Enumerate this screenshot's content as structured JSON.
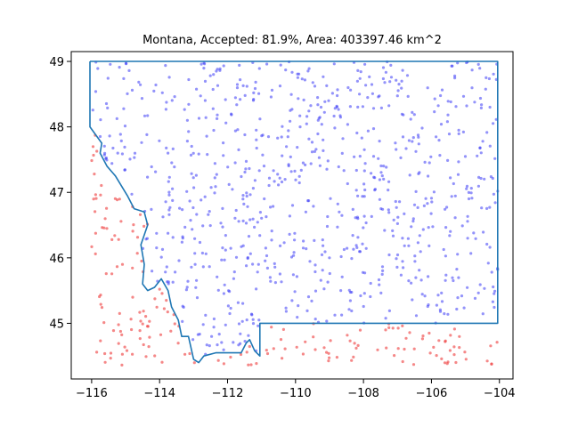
{
  "chart_data": {
    "type": "scatter",
    "title": "Montana, Accepted: 81.9%, Area: 403397.46 km^2",
    "xlabel": "",
    "ylabel": "",
    "xlim": [
      -116.6,
      -103.6
    ],
    "ylim": [
      44.15,
      49.15
    ],
    "xticks": [
      -116,
      -114,
      -112,
      -110,
      -108,
      -106,
      -104
    ],
    "yticks": [
      45,
      46,
      47,
      48,
      49
    ],
    "grid": false,
    "accepted_percent": 81.9,
    "area_km2": 403397.46,
    "series": [
      {
        "role": "accepted",
        "color": "#3b3bf5",
        "opacity": 0.55,
        "count": 819,
        "sample_seed": 11
      },
      {
        "role": "rejected",
        "color": "#f04848",
        "opacity": 0.65,
        "count": 181,
        "sample_seed": 23
      }
    ],
    "boundary": {
      "color": "#1f77b4",
      "lon_lat": [
        [
          -116.05,
          49.0
        ],
        [
          -104.05,
          49.0
        ],
        [
          -104.05,
          45.0
        ],
        [
          -111.05,
          45.0
        ],
        [
          -111.05,
          44.5
        ],
        [
          -111.2,
          44.58
        ],
        [
          -111.35,
          44.75
        ],
        [
          -111.45,
          44.7
        ],
        [
          -111.6,
          44.55
        ],
        [
          -112.0,
          44.55
        ],
        [
          -112.35,
          44.55
        ],
        [
          -112.7,
          44.5
        ],
        [
          -112.85,
          44.4
        ],
        [
          -113.0,
          44.45
        ],
        [
          -113.15,
          44.8
        ],
        [
          -113.35,
          44.8
        ],
        [
          -113.45,
          45.05
        ],
        [
          -113.65,
          45.25
        ],
        [
          -113.75,
          45.5
        ],
        [
          -113.95,
          45.68
        ],
        [
          -114.15,
          45.55
        ],
        [
          -114.35,
          45.5
        ],
        [
          -114.5,
          45.6
        ],
        [
          -114.45,
          45.9
        ],
        [
          -114.55,
          46.2
        ],
        [
          -114.35,
          46.5
        ],
        [
          -114.45,
          46.7
        ],
        [
          -114.75,
          46.75
        ],
        [
          -114.95,
          46.95
        ],
        [
          -115.3,
          47.25
        ],
        [
          -115.55,
          47.4
        ],
        [
          -115.75,
          47.6
        ],
        [
          -115.7,
          47.75
        ],
        [
          -116.05,
          48.0
        ],
        [
          -116.05,
          49.0
        ]
      ]
    }
  }
}
